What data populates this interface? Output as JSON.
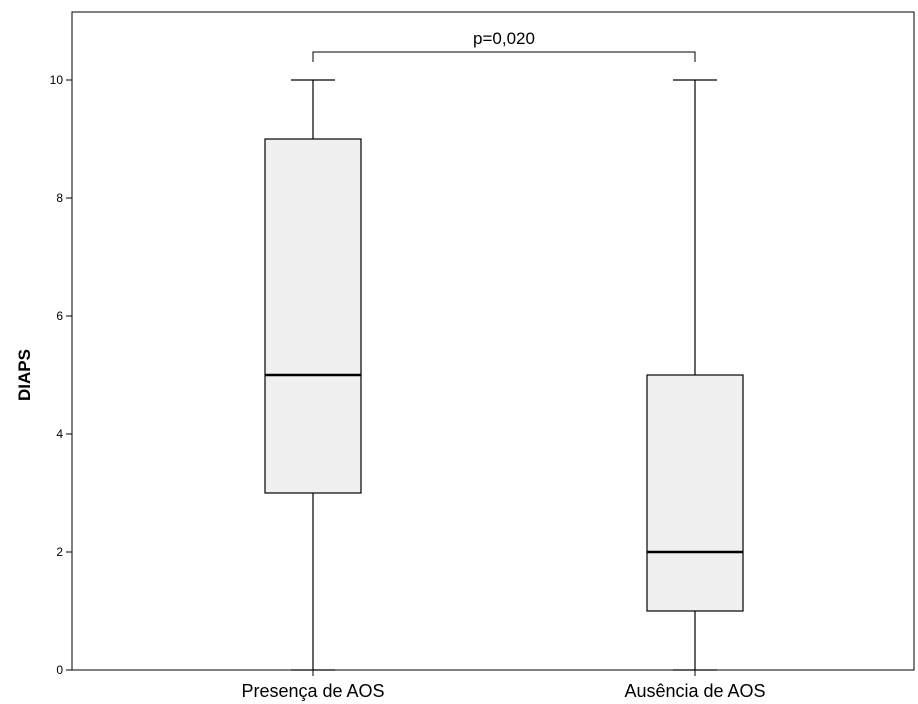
{
  "chart_data": {
    "type": "boxplot",
    "title": "",
    "xlabel": "",
    "ylabel": "DIAPS",
    "ylim": [
      0,
      11
    ],
    "yticks": [
      0,
      2,
      4,
      6,
      8,
      10
    ],
    "grid": false,
    "legend": "none",
    "categories": [
      "Presença de AOS",
      "Ausência de AOS"
    ],
    "boxes": [
      {
        "category": "Presença de AOS",
        "min": 0,
        "q1": 3,
        "median": 5,
        "q3": 9,
        "max": 10
      },
      {
        "category": "Ausência de AOS",
        "min": 0,
        "q1": 1,
        "median": 2,
        "q3": 5,
        "max": 10
      }
    ],
    "annotation": {
      "text": "p=0,020",
      "between": [
        "Presença de AOS",
        "Ausência de AOS"
      ],
      "y": 10.5
    },
    "box_fill": "#f0f0f0",
    "line_color": "#000000"
  }
}
